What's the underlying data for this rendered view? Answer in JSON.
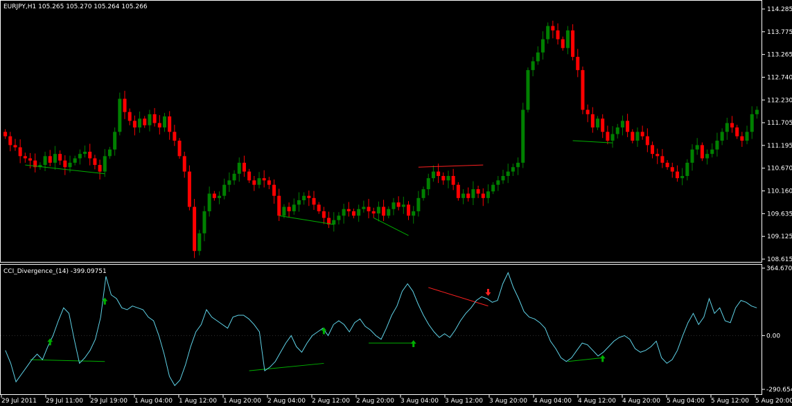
{
  "window": {
    "symbol_header": "EURJPY,H1  105.265 105.270 105.264 105.266",
    "indicator_header": "CCI_Divergence_(14) -399.09751"
  },
  "colors": {
    "background": "#000000",
    "grid_frame": "#ffffff",
    "bull_candle": "#008000",
    "bear_candle": "#ff0000",
    "cci_line": "#5fd3e8",
    "bull_divergence": "#00b000",
    "bear_divergence": "#ff2020"
  },
  "icons": {
    "bull_marker": "green-up-arrow-icon",
    "bear_marker": "red-down-arrow-icon"
  },
  "chart_data": [
    {
      "type": "candlestick",
      "title": "EURJPY,H1",
      "price_labels": [
        "114.285",
        "113.775",
        "113.265",
        "112.740",
        "112.230",
        "111.705",
        "111.195",
        "110.670",
        "110.160",
        "109.635",
        "109.125",
        "108.615"
      ],
      "ylim": [
        108.615,
        114.285
      ],
      "time_labels": [
        "29 Jul 2011",
        "29 Jul 11:00",
        "29 Jul 19:00",
        "1 Aug 04:00",
        "1 Aug 12:00",
        "1 Aug 20:00",
        "2 Aug 04:00",
        "2 Aug 12:00",
        "2 Aug 20:00",
        "3 Aug 04:00",
        "3 Aug 12:00",
        "3 Aug 20:00",
        "4 Aug 04:00",
        "4 Aug 12:00",
        "4 Aug 20:00",
        "5 Aug 04:00",
        "5 Aug 12:00",
        "5 Aug 20:00"
      ],
      "close_path": [
        111.4,
        111.2,
        111.15,
        110.95,
        110.9,
        110.85,
        110.7,
        110.75,
        110.95,
        110.8,
        111.0,
        110.85,
        110.7,
        110.8,
        110.9,
        111.0,
        111.05,
        110.9,
        110.75,
        110.6,
        110.95,
        111.1,
        111.5,
        112.25,
        111.95,
        111.75,
        111.6,
        111.8,
        111.65,
        111.9,
        111.7,
        111.6,
        111.85,
        111.5,
        111.3,
        110.95,
        110.6,
        109.8,
        108.8,
        109.2,
        109.7,
        110.1,
        110.0,
        110.05,
        110.3,
        110.4,
        110.55,
        110.8,
        110.6,
        110.4,
        110.3,
        110.45,
        110.4,
        110.3,
        110.05,
        109.6,
        109.8,
        109.7,
        109.85,
        109.95,
        110.05,
        110.0,
        109.85,
        109.7,
        109.55,
        109.4,
        109.5,
        109.6,
        109.75,
        109.7,
        109.6,
        109.75,
        109.8,
        109.7,
        109.65,
        109.8,
        109.6,
        109.75,
        109.9,
        109.8,
        109.85,
        109.6,
        109.7,
        110.0,
        110.2,
        110.45,
        110.6,
        110.5,
        110.4,
        110.5,
        110.3,
        110.0,
        110.1,
        110.0,
        110.2,
        110.1,
        110.0,
        110.15,
        110.3,
        110.4,
        110.5,
        110.6,
        110.7,
        110.8,
        112.0,
        112.9,
        113.1,
        113.3,
        113.6,
        113.9,
        113.8,
        113.6,
        113.4,
        113.8,
        113.2,
        112.9,
        112.0,
        111.9,
        111.6,
        111.8,
        111.5,
        111.3,
        111.45,
        111.6,
        111.75,
        111.5,
        111.3,
        111.5,
        111.4,
        111.2,
        111.0,
        110.95,
        110.8,
        110.7,
        110.6,
        110.45,
        110.5,
        110.8,
        111.1,
        111.2,
        110.9,
        111.0,
        111.1,
        111.3,
        111.5,
        111.7,
        111.6,
        111.4,
        111.3,
        111.5,
        111.9,
        112.0
      ],
      "divergence_lines": [
        {
          "color": "bull",
          "from": [
            4,
            110.75
          ],
          "to": [
            20,
            110.55
          ]
        },
        {
          "color": "bull",
          "from": [
            55,
            109.6
          ],
          "to": [
            66,
            109.4
          ]
        },
        {
          "color": "bull",
          "from": [
            74,
            109.55
          ],
          "to": [
            81,
            109.15
          ]
        },
        {
          "color": "bear",
          "from": [
            83,
            110.7
          ],
          "to": [
            96,
            110.75
          ]
        },
        {
          "color": "bull",
          "from": [
            114,
            111.3
          ],
          "to": [
            122,
            111.25
          ]
        }
      ]
    },
    {
      "type": "line",
      "title": "CCI_Divergence_(14)",
      "level_labels": [
        "364.6708",
        "0.00",
        "-290.654"
      ],
      "ylim": [
        -290.654,
        364.6708
      ],
      "values": [
        -80,
        -150,
        -250,
        -210,
        -170,
        -130,
        -100,
        -130,
        -60,
        0,
        80,
        150,
        120,
        -20,
        -150,
        -120,
        -80,
        -20,
        100,
        320,
        220,
        200,
        150,
        140,
        160,
        150,
        140,
        100,
        80,
        0,
        -100,
        -220,
        -270,
        -240,
        -160,
        -60,
        20,
        60,
        140,
        100,
        80,
        60,
        40,
        100,
        110,
        110,
        90,
        60,
        20,
        -190,
        -170,
        -140,
        -90,
        -40,
        0,
        -60,
        -90,
        -40,
        0,
        20,
        40,
        0,
        60,
        80,
        60,
        20,
        70,
        90,
        50,
        30,
        0,
        -20,
        40,
        110,
        160,
        240,
        280,
        240,
        170,
        110,
        60,
        20,
        -10,
        10,
        -10,
        30,
        80,
        120,
        150,
        190,
        210,
        200,
        180,
        190,
        280,
        340,
        260,
        200,
        130,
        100,
        90,
        70,
        40,
        -30,
        -70,
        -120,
        -140,
        -120,
        -80,
        -40,
        -50,
        -80,
        -110,
        -90,
        -60,
        -30,
        -10,
        0,
        -20,
        -70,
        -90,
        -80,
        -60,
        -30,
        -120,
        -150,
        -130,
        -80,
        0,
        70,
        120,
        60,
        100,
        200,
        120,
        150,
        80,
        70,
        150,
        190,
        180,
        160,
        150
      ],
      "divergence_lines": [
        {
          "color": "bull",
          "from": [
            5,
            -130
          ],
          "to": [
            20,
            -140
          ]
        },
        {
          "color": "bull",
          "from": [
            49,
            -190
          ],
          "to": [
            64,
            -150
          ]
        },
        {
          "color": "bull",
          "from": [
            73,
            -40
          ],
          "to": [
            82,
            -40
          ]
        },
        {
          "color": "bear",
          "from": [
            85,
            260
          ],
          "to": [
            97,
            160
          ]
        },
        {
          "color": "bull",
          "from": [
            113,
            -140
          ],
          "to": [
            120,
            -120
          ]
        }
      ],
      "markers": [
        {
          "type": "bull",
          "index": 9
        },
        {
          "type": "bull",
          "index": 20
        },
        {
          "type": "bull",
          "index": 64
        },
        {
          "type": "bull",
          "index": 82
        },
        {
          "type": "bear",
          "index": 97
        },
        {
          "type": "bull",
          "index": 120
        }
      ]
    }
  ]
}
